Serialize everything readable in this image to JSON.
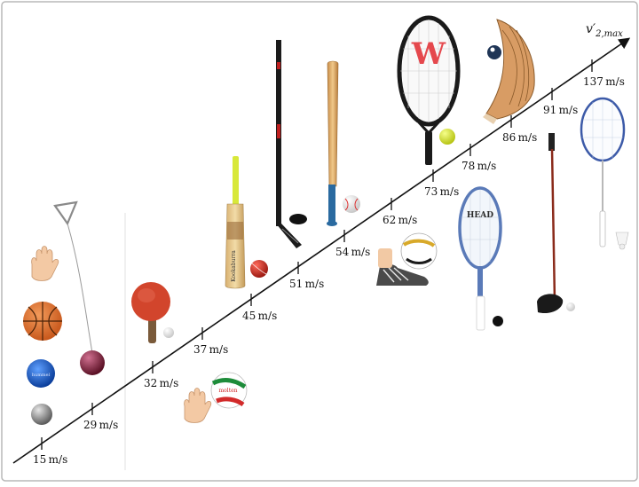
{
  "axis": {
    "label": "v′",
    "label_subscript": "2,max",
    "ticks": [
      {
        "value": "15",
        "unit": "m/s"
      },
      {
        "value": "29",
        "unit": "m/s"
      },
      {
        "value": "32",
        "unit": "m/s"
      },
      {
        "value": "37",
        "unit": "m/s"
      },
      {
        "value": "45",
        "unit": "m/s"
      },
      {
        "value": "51",
        "unit": "m/s"
      },
      {
        "value": "54",
        "unit": "m/s"
      },
      {
        "value": "62",
        "unit": "m/s"
      },
      {
        "value": "73",
        "unit": "m/s"
      },
      {
        "value": "78",
        "unit": "m/s"
      },
      {
        "value": "86",
        "unit": "m/s"
      },
      {
        "value": "91",
        "unit": "m/s"
      },
      {
        "value": "137",
        "unit": "m/s"
      }
    ]
  },
  "logos": {
    "cricket_bat_brand": "Kookaburra",
    "volleyball_brand": "molten",
    "racket_brand": "W",
    "squash_brand": "HEAD"
  },
  "icons": [
    "hand-icon",
    "basketball-icon",
    "handball-icon",
    "shot-put-ball-icon",
    "hammer-throw-icon",
    "table-tennis-paddle-icon",
    "ping-pong-ball-icon",
    "volleyball-icon",
    "cricket-bat-icon",
    "cricket-ball-icon",
    "hockey-stick-icon",
    "hockey-puck-icon",
    "baseball-bat-icon",
    "baseball-icon",
    "soccer-ball-icon",
    "shoe-icon",
    "tennis-racket-icon",
    "tennis-ball-icon",
    "squash-racket-icon",
    "squash-ball-icon",
    "jai-alai-cesta-icon",
    "pool-ball-icon",
    "golf-club-icon",
    "golf-ball-icon",
    "badminton-racket-icon",
    "shuttlecock-icon"
  ]
}
